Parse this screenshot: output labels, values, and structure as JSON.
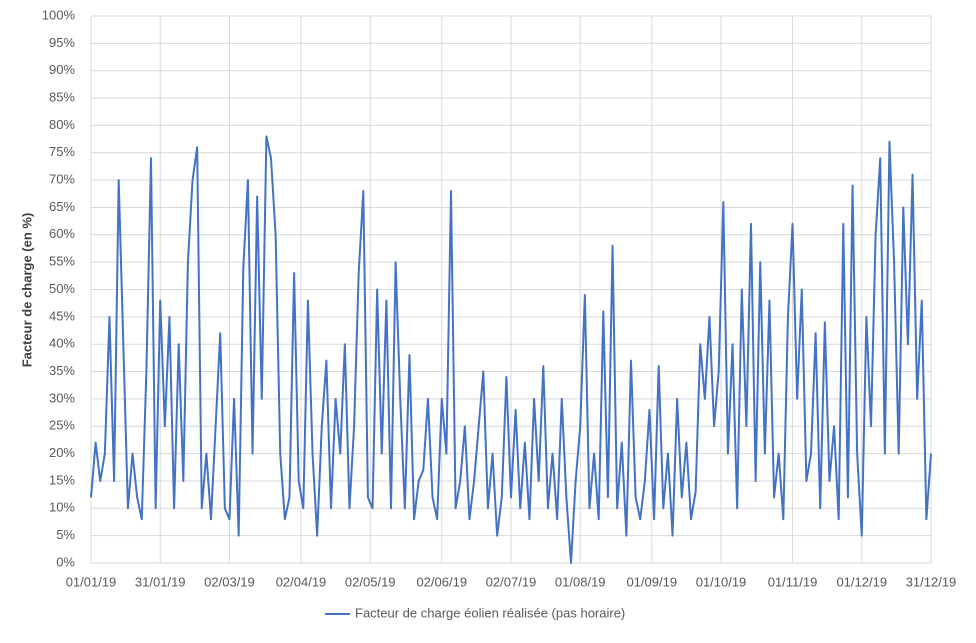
{
  "chart_data": {
    "type": "line",
    "y_label": "Facteur de charge (en %)",
    "series": [
      {
        "name": "Facteur de charge éolien réalisée (pas horaire)",
        "color": "#4472c4",
        "values": [
          12,
          22,
          15,
          20,
          45,
          15,
          70,
          40,
          10,
          20,
          12,
          8,
          35,
          74,
          10,
          48,
          25,
          45,
          10,
          40,
          15,
          55,
          70,
          76,
          10,
          20,
          8,
          25,
          42,
          10,
          8,
          30,
          5,
          54,
          70,
          20,
          67,
          30,
          78,
          74,
          60,
          20,
          8,
          12,
          53,
          15,
          10,
          48,
          20,
          5,
          25,
          37,
          10,
          30,
          20,
          40,
          10,
          25,
          53,
          68,
          12,
          10,
          50,
          20,
          48,
          10,
          55,
          30,
          10,
          38,
          8,
          15,
          17,
          30,
          12,
          8,
          30,
          20,
          68,
          10,
          15,
          25,
          8,
          15,
          25,
          35,
          10,
          20,
          5,
          12,
          34,
          12,
          28,
          10,
          22,
          8,
          30,
          15,
          36,
          10,
          20,
          8,
          30,
          12,
          0,
          15,
          25,
          49,
          10,
          20,
          8,
          46,
          12,
          58,
          10,
          22,
          5,
          37,
          12,
          8,
          15,
          28,
          8,
          36,
          10,
          20,
          5,
          30,
          12,
          22,
          8,
          13,
          40,
          30,
          45,
          25,
          35,
          66,
          20,
          40,
          10,
          50,
          25,
          62,
          15,
          55,
          20,
          48,
          12,
          20,
          8,
          45,
          62,
          30,
          50,
          15,
          20,
          42,
          10,
          44,
          15,
          25,
          8,
          62,
          12,
          69,
          20,
          5,
          45,
          25,
          60,
          74,
          20,
          77,
          55,
          20,
          65,
          40,
          71,
          30,
          48,
          8,
          20
        ]
      }
    ],
    "x": [
      0,
      2,
      4,
      6,
      8,
      10,
      12,
      14,
      16,
      18,
      20,
      22,
      24,
      26,
      28,
      30,
      32,
      34,
      36,
      38,
      40,
      42,
      44,
      46,
      48,
      50,
      52,
      54,
      56,
      58,
      60,
      62,
      64,
      66,
      68,
      70,
      72,
      74,
      76,
      78,
      80,
      82,
      84,
      86,
      88,
      90,
      92,
      94,
      96,
      98,
      100,
      102,
      104,
      106,
      108,
      110,
      112,
      114,
      116,
      118,
      120,
      122,
      124,
      126,
      128,
      130,
      132,
      134,
      136,
      138,
      140,
      142,
      144,
      146,
      148,
      150,
      152,
      154,
      156,
      158,
      160,
      162,
      164,
      166,
      168,
      170,
      172,
      174,
      176,
      178,
      180,
      182,
      184,
      186,
      188,
      190,
      192,
      194,
      196,
      198,
      200,
      202,
      204,
      206,
      208,
      210,
      212,
      214,
      216,
      218,
      220,
      222,
      224,
      226,
      228,
      230,
      232,
      234,
      236,
      238,
      240,
      242,
      244,
      246,
      248,
      250,
      252,
      254,
      256,
      258,
      260,
      262,
      264,
      266,
      268,
      270,
      272,
      274,
      276,
      278,
      280,
      282,
      284,
      286,
      288,
      290,
      292,
      294,
      296,
      298,
      300,
      302,
      304,
      306,
      308,
      310,
      312,
      314,
      316,
      318,
      320,
      322,
      324,
      326,
      328,
      330,
      332,
      334,
      336,
      338,
      340,
      342,
      344,
      346,
      348,
      350,
      352,
      354,
      356,
      358,
      360,
      362,
      364
    ],
    "xlim": [
      0,
      364
    ],
    "xticks": [
      {
        "value": 0,
        "label": "01/01/19"
      },
      {
        "value": 30,
        "label": "31/01/19"
      },
      {
        "value": 60,
        "label": "02/03/19"
      },
      {
        "value": 91,
        "label": "02/04/19"
      },
      {
        "value": 121,
        "label": "02/05/19"
      },
      {
        "value": 152,
        "label": "02/06/19"
      },
      {
        "value": 182,
        "label": "02/07/19"
      },
      {
        "value": 212,
        "label": "01/08/19"
      },
      {
        "value": 243,
        "label": "01/09/19"
      },
      {
        "value": 273,
        "label": "01/10/19"
      },
      {
        "value": 304,
        "label": "01/11/19"
      },
      {
        "value": 334,
        "label": "01/12/19"
      },
      {
        "value": 364,
        "label": "31/12/19"
      }
    ],
    "ylim": [
      0,
      100
    ],
    "yticks": [
      {
        "value": 0,
        "label": "0%"
      },
      {
        "value": 5,
        "label": "5%"
      },
      {
        "value": 10,
        "label": "10%"
      },
      {
        "value": 15,
        "label": "15%"
      },
      {
        "value": 20,
        "label": "20%"
      },
      {
        "value": 25,
        "label": "25%"
      },
      {
        "value": 30,
        "label": "30%"
      },
      {
        "value": 35,
        "label": "35%"
      },
      {
        "value": 40,
        "label": "40%"
      },
      {
        "value": 45,
        "label": "45%"
      },
      {
        "value": 50,
        "label": "50%"
      },
      {
        "value": 55,
        "label": "55%"
      },
      {
        "value": 60,
        "label": "60%"
      },
      {
        "value": 65,
        "label": "65%"
      },
      {
        "value": 70,
        "label": "70%"
      },
      {
        "value": 75,
        "label": "75%"
      },
      {
        "value": 80,
        "label": "80%"
      },
      {
        "value": 85,
        "label": "85%"
      },
      {
        "value": 90,
        "label": "90%"
      },
      {
        "value": 95,
        "label": "95%"
      },
      {
        "value": 100,
        "label": "100%"
      }
    ],
    "grid": true
  }
}
